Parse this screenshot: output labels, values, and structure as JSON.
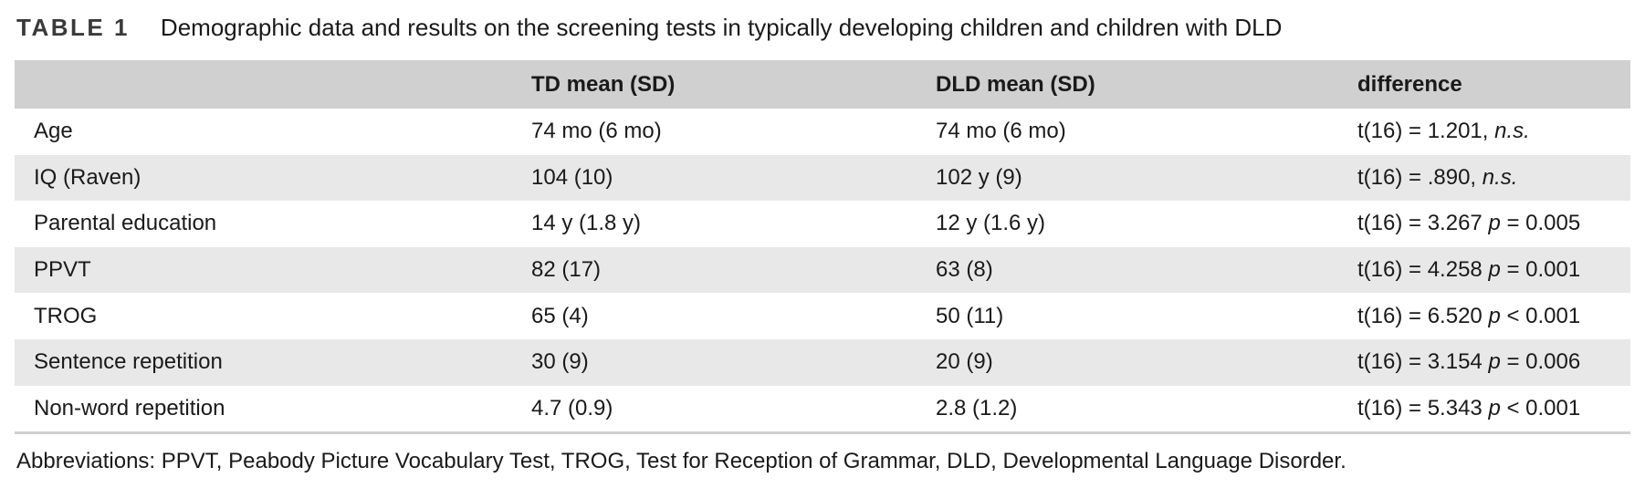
{
  "caption": {
    "label": "TABLE 1",
    "title": "Demographic data and results on the screening tests in typically developing children and children with DLD"
  },
  "table": {
    "headers": [
      "",
      "TD mean (SD)",
      "DLD mean (SD)",
      "difference"
    ],
    "rows": [
      {
        "measure": "Age",
        "td": "74 mo (6 mo)",
        "dld": "74 mo (6 mo)",
        "diff_stat": "t(16) = 1.201,",
        "diff_p_symbol": "",
        "diff_p_value": "n.s."
      },
      {
        "measure": "IQ (Raven)",
        "td": "104 (10)",
        "dld": "102 y (9)",
        "diff_stat": "t(16) = .890,",
        "diff_p_symbol": "",
        "diff_p_value": "n.s."
      },
      {
        "measure": "Parental education",
        "td": "14 y (1.8 y)",
        "dld": "12 y (1.6 y)",
        "diff_stat": "t(16) = 3.267",
        "diff_p_symbol": "p",
        "diff_p_value": "= 0.005"
      },
      {
        "measure": "PPVT",
        "td": "82 (17)",
        "dld": "63 (8)",
        "diff_stat": "t(16) = 4.258",
        "diff_p_symbol": "p",
        "diff_p_value": "= 0.001"
      },
      {
        "measure": "TROG",
        "td": "65 (4)",
        "dld": "50 (11)",
        "diff_stat": "t(16) = 6.520",
        "diff_p_symbol": "p",
        "diff_p_value": "< 0.001"
      },
      {
        "measure": "Sentence repetition",
        "td": "30 (9)",
        "dld": "20 (9)",
        "diff_stat": "t(16) = 3.154",
        "diff_p_symbol": "p",
        "diff_p_value": "= 0.006"
      },
      {
        "measure": "Non-word repetition",
        "td": "4.7 (0.9)",
        "dld": "2.8 (1.2)",
        "diff_stat": "t(16) = 5.343",
        "diff_p_symbol": "p",
        "diff_p_value": "< 0.001"
      }
    ]
  },
  "footnote": "Abbreviations: PPVT, Peabody Picture Vocabulary Test, TROG, Test for Reception of Grammar, DLD, Developmental Language Disorder.",
  "colors": {
    "header_bg": "#d0d0d0",
    "shade_bg": "#e8e8e8",
    "text": "#1a1a1a"
  }
}
